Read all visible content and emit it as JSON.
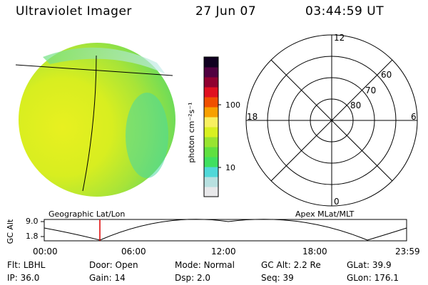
{
  "header": {
    "title": "Ultraviolet Imager",
    "date": "27 Jun 07",
    "time": "03:44:59 UT"
  },
  "colorbar": {
    "unit_label": "photon cm⁻²s⁻¹",
    "tick_labels": [
      "100",
      "10"
    ],
    "colors": [
      "#e8e8ea",
      "#b8e0e0",
      "#50d8d8",
      "#40e060",
      "#60e040",
      "#98e430",
      "#d8f020",
      "#f8f060",
      "#f8a000",
      "#f05000",
      "#e01020",
      "#900030",
      "#500040",
      "#100020"
    ]
  },
  "polar": {
    "mlt_labels": {
      "top": "12",
      "bottom": "0",
      "left": "18",
      "right": "6"
    },
    "lat_labels": [
      "80",
      "70",
      "60"
    ]
  },
  "left_caption": "Geographic Lat/Lon",
  "right_caption": "Apex MLat/MLT",
  "altitude_plot": {
    "ylabel": "GC Alt",
    "y_ticks": [
      "9.0",
      "1.8"
    ],
    "x_ticks": [
      "00:00",
      "06:00",
      "12:00",
      "18:00",
      "23:59"
    ],
    "current_time_marker": "03:45"
  },
  "info": {
    "row1": [
      {
        "label": "Flt:",
        "value": "LBHL"
      },
      {
        "label": "Door:",
        "value": "Open"
      },
      {
        "label": "Mode:",
        "value": "Normal"
      },
      {
        "label": "GC Alt:",
        "value": "2.2 Re"
      },
      {
        "label": "GLat:",
        "value": "39.9"
      }
    ],
    "row2": [
      {
        "label": "IP:",
        "value": "36.0"
      },
      {
        "label": "Gain:",
        "value": "14"
      },
      {
        "label": "Dsp:",
        "value": "2.0"
      },
      {
        "label": "Seq:",
        "value": "39"
      },
      {
        "label": "GLon:",
        "value": "176.1"
      }
    ]
  }
}
